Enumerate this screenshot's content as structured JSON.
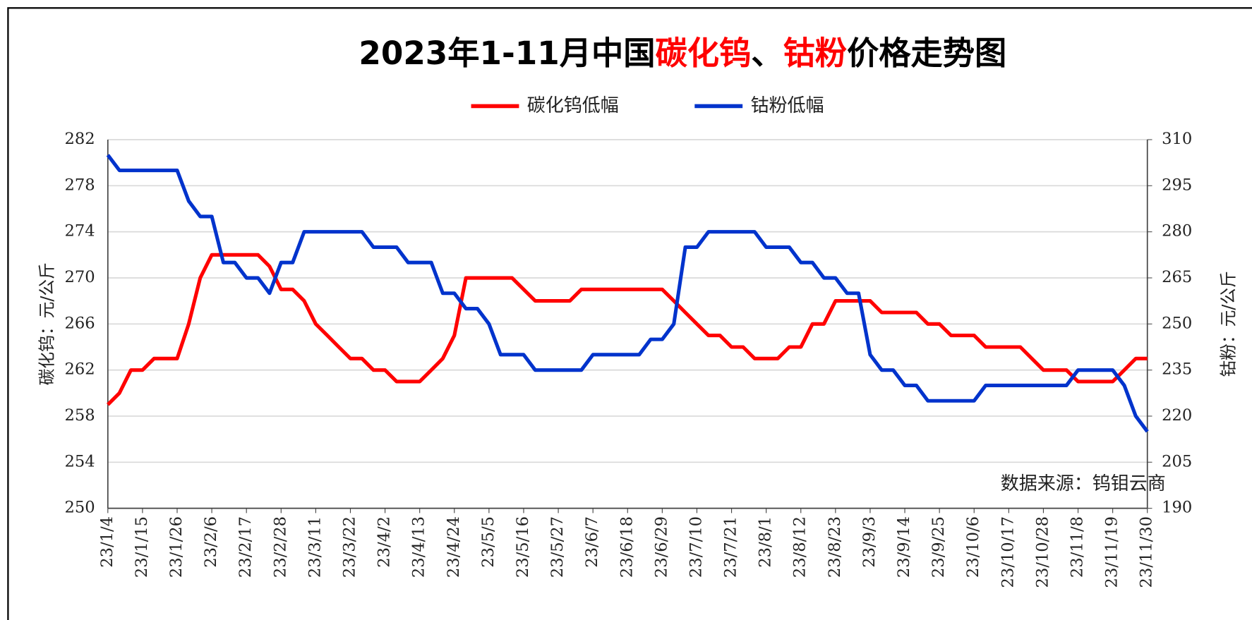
{
  "chart_data": {
    "type": "line",
    "title": [
      {
        "text": "2023年1-11月中国",
        "color": "#000000"
      },
      {
        "text": "碳化钨",
        "color": "#ff0000"
      },
      {
        "text": "、",
        "color": "#000000"
      },
      {
        "text": "钴粉",
        "color": "#ff0000"
      },
      {
        "text": "价格走势图",
        "color": "#000000"
      }
    ],
    "ylabel": "碳化钨：元/公斤",
    "y2label": "钴粉：元/公斤",
    "source": "数据来源：钨钼云商",
    "categories": [
      "23/1/4",
      null,
      null,
      "23/1/15",
      null,
      null,
      "23/1/26",
      null,
      null,
      "23/2/6",
      null,
      null,
      "23/2/17",
      null,
      null,
      "23/2/28",
      null,
      null,
      "23/3/11",
      null,
      null,
      "23/3/22",
      null,
      null,
      "23/4/2",
      null,
      null,
      "23/4/13",
      null,
      null,
      "23/4/24",
      null,
      null,
      "23/5/5",
      null,
      null,
      "23/5/16",
      null,
      null,
      "23/5/27",
      null,
      null,
      "23/6/7",
      null,
      null,
      "23/6/18",
      null,
      null,
      "23/6/29",
      null,
      null,
      "23/7/10",
      null,
      null,
      "23/7/21",
      null,
      null,
      "23/8/1",
      null,
      null,
      "23/8/12",
      null,
      null,
      "23/8/23",
      null,
      null,
      "23/9/3",
      null,
      null,
      "23/9/14",
      null,
      null,
      "23/9/25",
      null,
      null,
      "23/10/6",
      null,
      null,
      "23/10/17",
      null,
      null,
      "23/10/28",
      null,
      null,
      "23/11/8",
      null,
      null,
      "23/11/19",
      null,
      null,
      "23/11/30"
    ],
    "series": [
      {
        "name": "碳化钨低幅",
        "color": "#ff0000",
        "axis": "y",
        "values": [
          259,
          260,
          262,
          262,
          263,
          263,
          263,
          266,
          270,
          272,
          272,
          272,
          272,
          272,
          271,
          269,
          269,
          268,
          266,
          265,
          264,
          263,
          263,
          262,
          262,
          261,
          261,
          261,
          262,
          263,
          265,
          270,
          270,
          270,
          270,
          270,
          269,
          268,
          268,
          268,
          268,
          269,
          269,
          269,
          269,
          269,
          269,
          269,
          269,
          268,
          267,
          266,
          265,
          265,
          264,
          264,
          263,
          263,
          263,
          264,
          264,
          266,
          266,
          268,
          268,
          268,
          268,
          267,
          267,
          267,
          267,
          266,
          266,
          265,
          265,
          265,
          264,
          264,
          264,
          264,
          263,
          262,
          262,
          262,
          261,
          261,
          261,
          261,
          262,
          263,
          263
        ]
      },
      {
        "name": "钴粉低幅",
        "color": "#0033cc",
        "axis": "y2",
        "values": [
          305,
          300,
          300,
          300,
          300,
          300,
          300,
          290,
          285,
          285,
          270,
          270,
          265,
          265,
          260,
          270,
          270,
          280,
          280,
          280,
          280,
          280,
          280,
          275,
          275,
          275,
          270,
          270,
          270,
          260,
          260,
          255,
          255,
          250,
          240,
          240,
          240,
          235,
          235,
          235,
          235,
          235,
          240,
          240,
          240,
          240,
          240,
          245,
          245,
          250,
          275,
          275,
          280,
          280,
          280,
          280,
          280,
          275,
          275,
          275,
          270,
          270,
          265,
          265,
          260,
          260,
          240,
          235,
          235,
          230,
          230,
          225,
          225,
          225,
          225,
          225,
          230,
          230,
          230,
          230,
          230,
          230,
          230,
          230,
          235,
          235,
          235,
          235,
          230,
          220,
          215
        ]
      }
    ],
    "ylim": [
      250,
      282
    ],
    "yticks": [
      250,
      254,
      258,
      262,
      266,
      270,
      274,
      278,
      282
    ],
    "y2lim": [
      190,
      310
    ],
    "y2ticks": [
      190,
      205,
      220,
      235,
      250,
      265,
      280,
      295,
      310
    ],
    "grid": true,
    "legend": "top"
  }
}
